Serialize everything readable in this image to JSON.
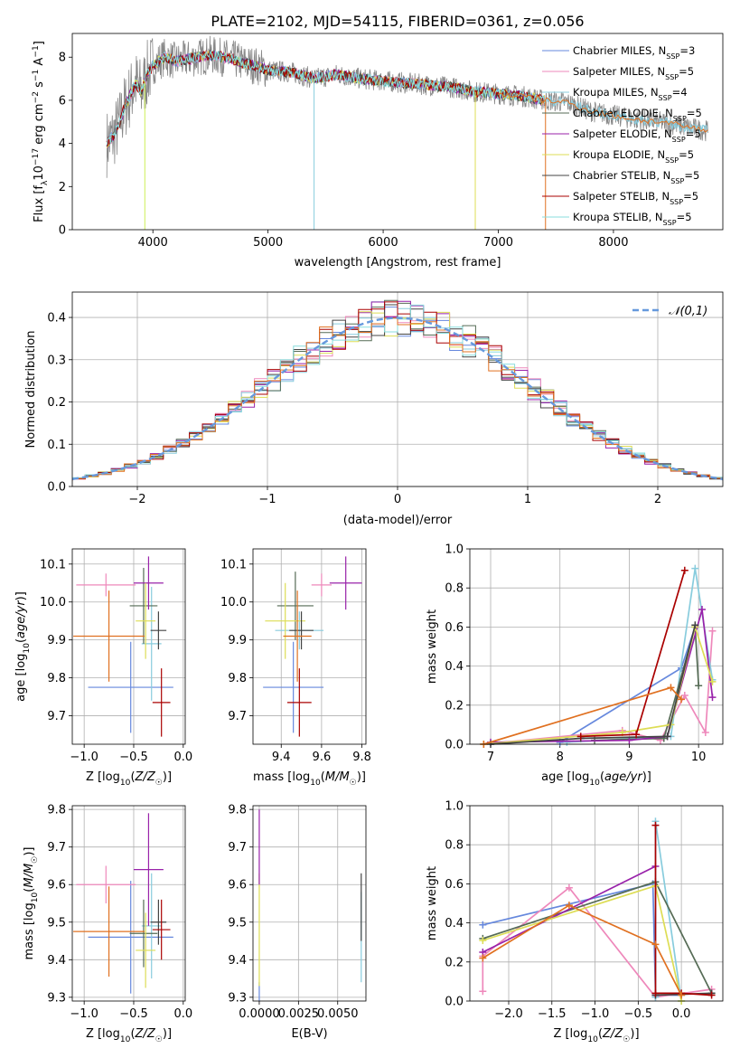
{
  "figure_title": "PLATE=2102, MJD=54115, FIBERID=0361, z=0.056",
  "palette": [
    "#6688dd",
    "#ee88bb",
    "#88ccdd",
    "#556b55",
    "#9922aa",
    "#dddd55",
    "#444444",
    "#aa0000",
    "#88dddd"
  ],
  "extra_colors": {
    "orange": "#e07020",
    "lime": "#ccee55",
    "gray": "#888888"
  },
  "chart_data": [
    {
      "id": "spectrum",
      "type": "line",
      "xlabel": "wavelength [Angstrom, rest frame]",
      "ylabel": "Flux [f_λ10^-17 erg cm^-2 s^-1 A^-1]",
      "xlim": [
        3300,
        8950
      ],
      "ylim": [
        0,
        9.1
      ],
      "xticks": [
        4000,
        5000,
        6000,
        7000,
        8000
      ],
      "yticks": [
        0,
        2,
        4,
        6,
        8
      ],
      "grid": false,
      "legend_placement": "right",
      "legend": [
        {
          "label": "Chabrier MILES, N",
          "sub": "SSP",
          "suffix": "=3"
        },
        {
          "label": "Salpeter MILES, N",
          "sub": "SSP",
          "suffix": "=5"
        },
        {
          "label": "Kroupa MILES, N",
          "sub": "SSP",
          "suffix": "=4"
        },
        {
          "label": "Chabrier ELODIE, N",
          "sub": "SSP",
          "suffix": "=5"
        },
        {
          "label": "Salpeter ELODIE, N",
          "sub": "SSP",
          "suffix": "=5"
        },
        {
          "label": "Kroupa ELODIE, N",
          "sub": "SSP",
          "suffix": "=5"
        },
        {
          "label": "Chabrier STELIB, N",
          "sub": "SSP",
          "suffix": "=5"
        },
        {
          "label": "Salpeter STELIB, N",
          "sub": "SSP",
          "suffix": "=5"
        },
        {
          "label": "Kroupa STELIB, N",
          "sub": "SSP",
          "suffix": "=5"
        }
      ],
      "model_x": [
        3600,
        3650,
        3700,
        3750,
        3800,
        3850,
        3900,
        3950,
        4000,
        4100,
        4200,
        4300,
        4400,
        4500,
        4600,
        4700,
        4800,
        4900,
        5000,
        5200,
        5400,
        5600,
        5800,
        6000,
        6200,
        6400,
        6600,
        6800,
        7000,
        7200,
        7400,
        7600,
        7800,
        8000,
        8200,
        8400,
        8600,
        8800
      ],
      "model_y": [
        4.0,
        4.3,
        4.8,
        5.6,
        6.2,
        6.8,
        6.4,
        7.2,
        7.6,
        8.0,
        7.8,
        7.9,
        8.0,
        8.1,
        8.0,
        7.9,
        7.7,
        7.6,
        7.4,
        7.3,
        7.0,
        7.2,
        7.0,
        6.9,
        6.8,
        6.7,
        6.6,
        6.4,
        6.3,
        6.2,
        6.0,
        5.9,
        5.5,
        5.3,
        5.1,
        5.0,
        4.8,
        4.6
      ]
    },
    {
      "id": "residuals",
      "type": "histogram",
      "xlabel": "(data-model)/error",
      "ylabel": "Normed distribution",
      "xlim": [
        -2.5,
        2.5
      ],
      "ylim": [
        0,
        0.46
      ],
      "xticks": [
        -2,
        -1,
        0,
        1,
        2
      ],
      "yticks": [
        0.0,
        0.1,
        0.2,
        0.3,
        0.4
      ],
      "grid": true,
      "legend_placement": "top-right",
      "gauss_label": "𝒩(0,1)",
      "bins_step": 0.1
    },
    {
      "id": "age_vs_Z",
      "type": "errorbar",
      "xlabel": "Z [log10(Z/Z☉)]",
      "ylabel": "age [log10(age/yr)]",
      "xlim": [
        -1.12,
        0.02
      ],
      "ylim": [
        9.625,
        10.14
      ],
      "xticks": [
        -1.0,
        -0.5,
        0.0
      ],
      "yticks": [
        9.7,
        9.8,
        9.9,
        10.0,
        10.1
      ],
      "points": [
        {
          "x": -0.53,
          "y": 9.775,
          "xerr": 0.43,
          "yerr": 0.12,
          "c": 0
        },
        {
          "x": -0.78,
          "y": 10.045,
          "xerr": 0.3,
          "yerr": 0.03,
          "c": 1
        },
        {
          "x": -0.32,
          "y": 9.89,
          "xerr": 0.1,
          "yerr": 0.15,
          "c": 2
        },
        {
          "x": -0.4,
          "y": 9.99,
          "xerr": 0.14,
          "yerr": 0.1,
          "c": 3
        },
        {
          "x": -0.35,
          "y": 10.05,
          "xerr": 0.15,
          "yerr": 0.07,
          "c": 4
        },
        {
          "x": -0.38,
          "y": 9.95,
          "xerr": 0.1,
          "yerr": 0.1,
          "c": 5
        },
        {
          "x": -0.25,
          "y": 9.925,
          "xerr": 0.08,
          "yerr": 0.05,
          "c": 6
        },
        {
          "x": -0.22,
          "y": 9.735,
          "xerr": 0.09,
          "yerr": 0.09,
          "c": 7
        },
        {
          "x": -0.75,
          "y": 9.91,
          "xerr": 0.36,
          "yerr": 0.12,
          "c": "orange"
        }
      ]
    },
    {
      "id": "age_vs_mass",
      "type": "errorbar",
      "xlabel": "mass [log10(M/M☉)]",
      "ylabel": "",
      "xlim": [
        9.26,
        9.82
      ],
      "ylim": [
        9.625,
        10.14
      ],
      "xticks": [
        9.4,
        9.6,
        9.8
      ],
      "yticks": [
        9.7,
        9.8,
        9.9,
        10.0,
        10.1
      ],
      "points": [
        {
          "x": 9.46,
          "y": 9.775,
          "xerr": 0.15,
          "yerr": 0.12,
          "c": 0
        },
        {
          "x": 9.6,
          "y": 10.045,
          "xerr": 0.05,
          "yerr": 0.03,
          "c": 1
        },
        {
          "x": 9.49,
          "y": 9.925,
          "xerr": 0.12,
          "yerr": 0.05,
          "c": 2
        },
        {
          "x": 9.47,
          "y": 9.99,
          "xerr": 0.09,
          "yerr": 0.09,
          "c": 3
        },
        {
          "x": 9.72,
          "y": 10.05,
          "xerr": 0.08,
          "yerr": 0.07,
          "c": 4
        },
        {
          "x": 9.42,
          "y": 9.95,
          "xerr": 0.1,
          "yerr": 0.1,
          "c": 5
        },
        {
          "x": 9.5,
          "y": 9.925,
          "xerr": 0.06,
          "yerr": 0.05,
          "c": 6
        },
        {
          "x": 9.49,
          "y": 9.735,
          "xerr": 0.06,
          "yerr": 0.09,
          "c": 7
        },
        {
          "x": 9.48,
          "y": 9.91,
          "xerr": 0.07,
          "yerr": 0.12,
          "c": "orange"
        }
      ]
    },
    {
      "id": "weight_vs_age",
      "type": "line",
      "xlabel": "age [log10(age/yr)]",
      "ylabel": "mass weight",
      "xlim": [
        6.7,
        10.35
      ],
      "ylim": [
        0,
        1.0
      ],
      "xticks": [
        7,
        8,
        9,
        10
      ],
      "yticks": [
        0.0,
        0.2,
        0.4,
        0.6,
        0.8,
        1.0
      ],
      "grid": true,
      "series": [
        {
          "c": 0,
          "x": [
            8.0,
            9.75,
            9.95
          ],
          "y": [
            0.01,
            0.39,
            0.6
          ]
        },
        {
          "c": 1,
          "x": [
            6.9,
            8.9,
            9.45,
            9.8,
            10.1,
            10.2
          ],
          "y": [
            0.0,
            0.07,
            0.02,
            0.25,
            0.06,
            0.58
          ]
        },
        {
          "c": 2,
          "x": [
            8.1,
            9.6,
            9.95,
            10.2
          ],
          "y": [
            0.01,
            0.04,
            0.9,
            0.33
          ]
        },
        {
          "c": 3,
          "x": [
            8.5,
            9.5,
            9.95,
            10.0
          ],
          "y": [
            0.02,
            0.03,
            0.6,
            0.3
          ]
        },
        {
          "c": 4,
          "x": [
            7.0,
            9.0,
            9.55,
            10.05,
            10.2
          ],
          "y": [
            0.01,
            0.02,
            0.04,
            0.69,
            0.24
          ]
        },
        {
          "c": 5,
          "x": [
            6.9,
            8.9,
            9.6,
            9.95,
            10.2
          ],
          "y": [
            0.0,
            0.06,
            0.1,
            0.6,
            0.32
          ]
        },
        {
          "c": 6,
          "x": [
            7.0,
            8.3,
            9.55,
            9.95
          ],
          "y": [
            0.0,
            0.03,
            0.04,
            0.61
          ]
        },
        {
          "c": 7,
          "x": [
            8.3,
            9.1,
            9.8
          ],
          "y": [
            0.04,
            0.05,
            0.89
          ]
        },
        {
          "c": "orange",
          "x": [
            6.9,
            9.6,
            9.75
          ],
          "y": [
            0.0,
            0.29,
            0.23
          ]
        }
      ]
    },
    {
      "id": "mass_vs_Z",
      "type": "errorbar",
      "xlabel": "Z [log10(Z/Z☉)]",
      "ylabel": "mass [log10(M/M☉)]",
      "xlim": [
        -1.12,
        0.02
      ],
      "ylim": [
        9.29,
        9.81
      ],
      "xticks": [
        -1.0,
        -0.5,
        0.0
      ],
      "yticks": [
        9.3,
        9.4,
        9.5,
        9.6,
        9.7,
        9.8
      ],
      "points": [
        {
          "x": -0.53,
          "y": 9.46,
          "xerr": 0.43,
          "yerr": 0.15,
          "c": 0
        },
        {
          "x": -0.78,
          "y": 9.6,
          "xerr": 0.3,
          "yerr": 0.05,
          "c": 1
        },
        {
          "x": -0.32,
          "y": 9.49,
          "xerr": 0.1,
          "yerr": 0.14,
          "c": 2
        },
        {
          "x": -0.4,
          "y": 9.47,
          "xerr": 0.14,
          "yerr": 0.09,
          "c": 3
        },
        {
          "x": -0.35,
          "y": 9.64,
          "xerr": 0.15,
          "yerr": 0.15,
          "c": 4
        },
        {
          "x": -0.38,
          "y": 9.425,
          "xerr": 0.1,
          "yerr": 0.1,
          "c": 5
        },
        {
          "x": -0.25,
          "y": 9.5,
          "xerr": 0.08,
          "yerr": 0.06,
          "c": 6
        },
        {
          "x": -0.22,
          "y": 9.48,
          "xerr": 0.09,
          "yerr": 0.08,
          "c": 7
        },
        {
          "x": -0.75,
          "y": 9.475,
          "xerr": 0.36,
          "yerr": 0.12,
          "c": "orange"
        }
      ]
    },
    {
      "id": "mass_vs_EBV",
      "type": "errorbar",
      "xlabel": "E(B-V)",
      "ylabel": "",
      "xlim": [
        -0.0004,
        0.0068
      ],
      "ylim": [
        9.29,
        9.81
      ],
      "xticks": [
        0.0,
        0.0025,
        0.005
      ],
      "xtick_labels": [
        "0.0000",
        "0.0025",
        "0.0050"
      ],
      "yticks": [
        9.3,
        9.4,
        9.5,
        9.6,
        9.7,
        9.8
      ],
      "points": [
        {
          "x": 0.0,
          "y": 9.3,
          "xerr": 0,
          "yerr": 0.04,
          "c": 0
        },
        {
          "x": 0.0,
          "y": 9.48,
          "xerr": 0,
          "yerr": 0.15,
          "c": 5
        },
        {
          "x": 0.0,
          "y": 9.7,
          "xerr": 0,
          "yerr": 0.1,
          "c": 4
        },
        {
          "x": 0.0065,
          "y": 9.46,
          "xerr": 0,
          "yerr": 0.12,
          "c": 2
        },
        {
          "x": 0.0065,
          "y": 9.54,
          "xerr": 0,
          "yerr": 0.09,
          "c": 6
        }
      ]
    },
    {
      "id": "weight_vs_Z",
      "type": "line",
      "xlabel": "Z [log10(Z/Z☉)]",
      "ylabel": "mass weight",
      "xlim": [
        -2.45,
        0.48
      ],
      "ylim": [
        0,
        1.0
      ],
      "xticks": [
        -2.0,
        -1.5,
        -1.0,
        -0.5,
        0.0
      ],
      "yticks": [
        0.0,
        0.2,
        0.4,
        0.6,
        0.8,
        1.0
      ],
      "grid": true,
      "series": [
        {
          "c": 0,
          "x": [
            -2.3,
            -0.33,
            -0.3,
            0.0
          ],
          "y": [
            0.39,
            0.6,
            0.03,
            0.03
          ]
        },
        {
          "c": 1,
          "x": [
            -2.3,
            -2.3,
            -1.3,
            -0.3,
            0.35
          ],
          "y": [
            0.05,
            0.23,
            0.58,
            0.02,
            0.06
          ]
        },
        {
          "c": 2,
          "x": [
            -0.3,
            -0.3,
            0.0
          ],
          "y": [
            0.02,
            0.92,
            0.0
          ]
        },
        {
          "c": 3,
          "x": [
            -2.3,
            -0.3,
            0.35
          ],
          "y": [
            0.32,
            0.61,
            0.04
          ]
        },
        {
          "c": 4,
          "x": [
            -2.3,
            -0.3
          ],
          "y": [
            0.25,
            0.69
          ]
        },
        {
          "c": 5,
          "x": [
            -2.3,
            -0.3,
            0.0
          ],
          "y": [
            0.31,
            0.59,
            0.0
          ]
        },
        {
          "c": 6,
          "x": [
            -0.3,
            0.35
          ],
          "y": [
            0.03,
            0.04
          ]
        },
        {
          "c": 7,
          "x": [
            -0.3,
            -0.3,
            0.0,
            0.35
          ],
          "y": [
            0.9,
            0.04,
            0.04,
            0.03
          ]
        },
        {
          "c": "orange",
          "x": [
            -2.3,
            -1.3,
            -0.3,
            0.0
          ],
          "y": [
            0.22,
            0.49,
            0.29,
            0.03
          ]
        }
      ]
    }
  ]
}
